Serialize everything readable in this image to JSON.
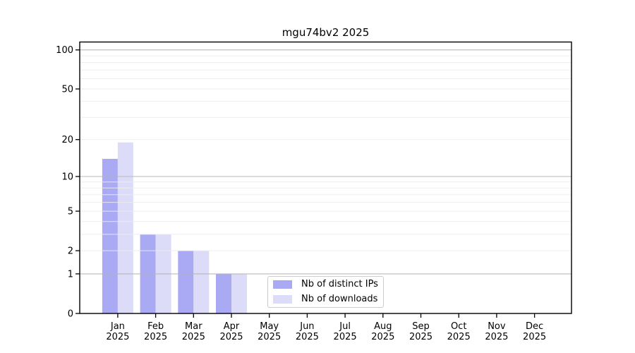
{
  "title": "mgu74bv2 2025",
  "chart_data": {
    "type": "bar",
    "title": "mgu74bv2 2025",
    "categories": [
      "Jan",
      "Feb",
      "Mar",
      "Apr",
      "May",
      "Jun",
      "Jul",
      "Aug",
      "Sep",
      "Oct",
      "Nov",
      "Dec"
    ],
    "category_year": "2025",
    "series": [
      {
        "name": "Nb of distinct IPs",
        "color": "#aaaaf4",
        "values": [
          14,
          3,
          2,
          1,
          0,
          0,
          0,
          0,
          0,
          0,
          0,
          0
        ]
      },
      {
        "name": "Nb of downloads",
        "color": "#dcdcf8",
        "values": [
          19,
          3,
          2,
          1,
          0,
          0,
          0,
          0,
          0,
          0,
          0,
          0
        ]
      }
    ],
    "xlabel": "",
    "ylabel": "",
    "yscale": "log1p",
    "ylim": [
      0,
      115
    ],
    "y_ticks": [
      0,
      1,
      2,
      5,
      10,
      20,
      50,
      100
    ],
    "y_gridlines_major": [
      1,
      10,
      100
    ],
    "y_gridlines_minor": [
      2,
      3,
      4,
      5,
      6,
      7,
      8,
      9,
      20,
      30,
      40,
      50,
      60,
      70,
      80,
      90
    ],
    "grid": true,
    "legend_position": "lower center"
  },
  "colors": {
    "bar_distinct_ips": "#aaaaf4",
    "bar_downloads": "#dcdcf8",
    "grid_major": "#b3b3b3",
    "grid_minor": "#ececec",
    "axis": "#000000",
    "background": "#ffffff",
    "legend_border": "#cccccc",
    "text": "#000000"
  }
}
